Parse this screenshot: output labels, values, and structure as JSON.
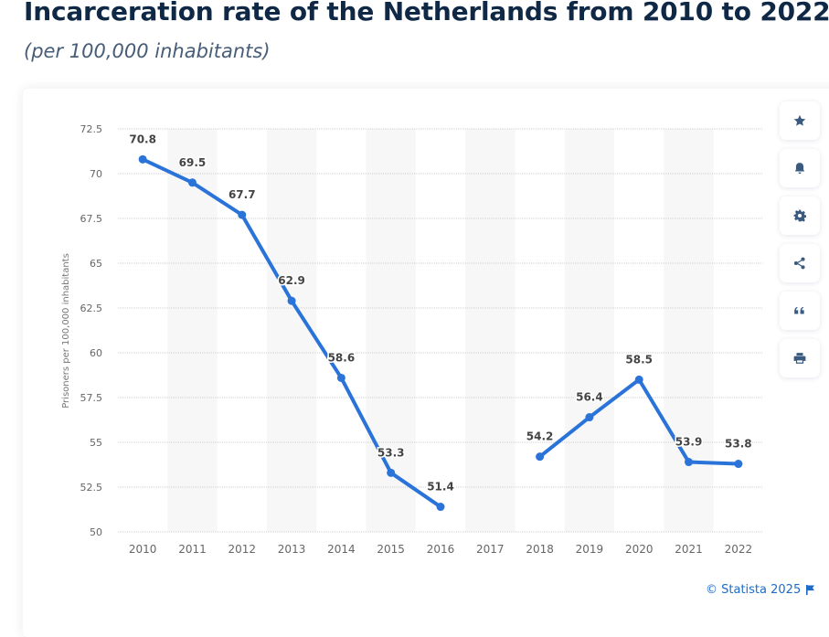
{
  "header": {
    "title": "Incarceration rate of the Netherlands from 2010 to 2022",
    "subtitle": "(per 100,000 inhabitants)"
  },
  "sidebar": {
    "items": [
      {
        "name": "favorite",
        "icon": "star-icon"
      },
      {
        "name": "notification",
        "icon": "bell-icon"
      },
      {
        "name": "settings",
        "icon": "gear-icon"
      },
      {
        "name": "share",
        "icon": "share-icon"
      },
      {
        "name": "citation",
        "icon": "quote-icon"
      },
      {
        "name": "print",
        "icon": "printer-icon"
      }
    ]
  },
  "footer": {
    "copyright": "© Statista 2025",
    "flag_icon": "flag-icon"
  },
  "colors": {
    "line": "#2a73d9",
    "band": "#f7f7f7",
    "grid": "#cfcfcf",
    "tick_text": "#666666",
    "label_text": "#444444"
  },
  "chart_data": {
    "type": "line",
    "title": "Incarceration rate of the Netherlands from 2010 to 2022",
    "subtitle": "(per 100,000 inhabitants)",
    "xlabel": "",
    "ylabel": "Prisoners per 100,000 inhabitants",
    "categories": [
      "2010",
      "2011",
      "2012",
      "2013",
      "2014",
      "2015",
      "2016",
      "2017",
      "2018",
      "2019",
      "2020",
      "2021",
      "2022"
    ],
    "series": [
      {
        "name": "Prisoners per 100,000 inhabitants",
        "values": [
          70.8,
          69.5,
          67.7,
          62.9,
          58.6,
          53.3,
          51.4,
          null,
          54.2,
          56.4,
          58.5,
          53.9,
          53.8
        ]
      }
    ],
    "value_labels": [
      "70.8",
      "69.5",
      "67.7",
      "62.9",
      "58.6",
      "53.3",
      "51.4",
      "",
      "54.2",
      "56.4",
      "58.5",
      "53.9",
      "53.8"
    ],
    "ylim": [
      50,
      72.5
    ],
    "yticks": [
      50,
      52.5,
      55,
      57.5,
      60,
      62.5,
      65,
      67.5,
      70,
      72.5
    ],
    "ytick_labels": [
      "50",
      "52.5",
      "55",
      "57.5",
      "60",
      "62.5",
      "65",
      "67.5",
      "70",
      "72.5"
    ],
    "grid": true,
    "legend": "none"
  }
}
